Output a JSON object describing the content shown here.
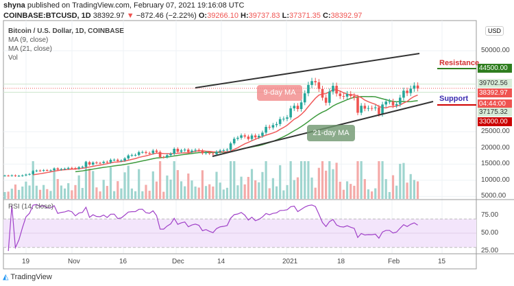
{
  "header": {
    "publisher": "shyna",
    "published_text": "published on TradingView.com, February 07, 2021 19:16:08 UTC",
    "symbol": "COINBASE:BTCUSD, 1D",
    "last": "38392.97",
    "change": "−872.46 (−2.22%)",
    "o_label": "O:",
    "o": "39266.10",
    "h_label": "H:",
    "h": "39737.83",
    "l_label": "L:",
    "l": "37371.35",
    "c_label": "C:",
    "c": "38392.97"
  },
  "legend": {
    "title": "Bitcoin / U.S. Dollar, 1D, COINBASE",
    "ma9": "MA (9, close)",
    "ma21": "MA (21, close)",
    "vol": "Vol",
    "rsi": "RSI (14, close)"
  },
  "currency": "USD",
  "annotations": {
    "resistance": "Resistance",
    "support": "Support",
    "ma9": "9-day MA",
    "ma21": "21-day MA"
  },
  "price_labels": {
    "resistance": "44500.00",
    "high": "39702.56",
    "last": "38392.97",
    "countdown": "04:44:00",
    "low": "37175.32",
    "support": "33000.00"
  },
  "brand": "TradingView",
  "colors": {
    "up": "#26a69a",
    "down": "#ef5350",
    "ma9": "#f05a5a",
    "ma21": "#3d9a3d",
    "rsi": "#a040c8",
    "resistance": "#2e7d1e",
    "support_label": "#3a2bb0",
    "support_line": "#d00000"
  },
  "chart_data": {
    "type": "candlestick",
    "symbol": "BTCUSD",
    "interval": "1D",
    "start_date": "2020-10-13",
    "closes": [
      11430,
      11420,
      11500,
      11320,
      11370,
      11500,
      11750,
      11910,
      12820,
      12990,
      12930,
      13120,
      13040,
      13070,
      13650,
      13280,
      13460,
      13560,
      13810,
      13760,
      13560,
      14030,
      14150,
      15590,
      14830,
      15480,
      15330,
      15310,
      15700,
      15500,
      16300,
      16330,
      15960,
      16080,
      16740,
      17660,
      17790,
      17820,
      18670,
      18700,
      18420,
      18370,
      19160,
      18740,
      17150,
      17140,
      17730,
      18190,
      19700,
      18800,
      19220,
      19450,
      18700,
      19150,
      19370,
      19190,
      18320,
      18550,
      18250,
      18040,
      18800,
      19170,
      19270,
      19440,
      21380,
      22800,
      23120,
      23860,
      23480,
      22740,
      23830,
      23250,
      23720,
      24710,
      26490,
      26280,
      27040,
      27360,
      28890,
      28990,
      29410,
      32200,
      33000,
      31990,
      34050,
      36860,
      39430,
      40620,
      40250,
      38220,
      35510,
      33930,
      37400,
      39180,
      36790,
      36000,
      35830,
      36630,
      36010,
      35540,
      30850,
      33000,
      32110,
      32290,
      32250,
      32500,
      30400,
      33400,
      34300,
      34300,
      33100,
      33540,
      35510,
      37660,
      36920,
      38300,
      39265,
      38393
    ],
    "price_axis_ticks": [
      "50000.00",
      "25000.00",
      "20000.00",
      "15000.00",
      "10000.00",
      "5000.00"
    ],
    "rsi_axis_ticks": [
      "75.00",
      "50.00",
      "25.00"
    ],
    "time_axis_ticks": [
      "19",
      "Nov",
      "16",
      "Dec",
      "14",
      "2021",
      "18",
      "Feb",
      "15"
    ],
    "levels": {
      "resistance": 44500,
      "support": 33000
    },
    "indicators": [
      "MA 9",
      "MA 21",
      "Volume",
      "RSI 14"
    ]
  }
}
